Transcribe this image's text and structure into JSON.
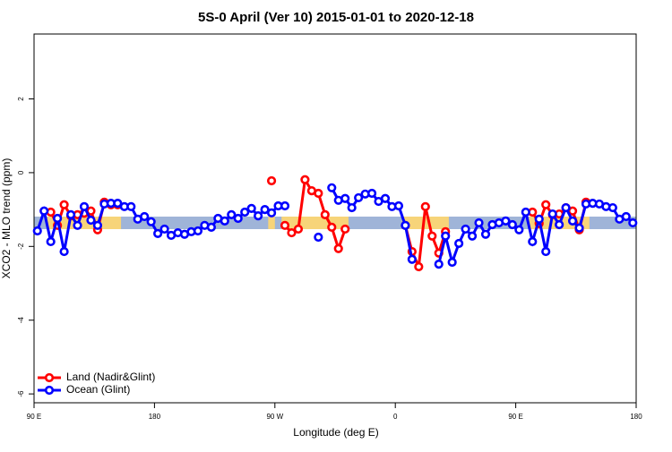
{
  "chart_data": {
    "type": "line",
    "title": "5S-0 April (Ver 10)   2015-01-01 to 2020-12-18",
    "xlabel": "Longitude (deg E)",
    "ylabel": "XCO2 - MLO trend (ppm)",
    "xlim": [
      90,
      540
    ],
    "ylim": [
      -6.24,
      3.76
    ],
    "xticks": [
      {
        "value": 90,
        "label": "90 E"
      },
      180,
      {
        "value": 270,
        "label": "90 W"
      },
      {
        "value": 360,
        "label": "0"
      },
      {
        "value": 450,
        "label": "90 E"
      },
      {
        "value": 540,
        "label": "180"
      }
    ],
    "yticks": [
      -6,
      -4,
      -2,
      0,
      2
    ],
    "legend": "bottom-left",
    "band": {
      "y": -1.36,
      "half_width": 0.17,
      "color": "#9fb4d8",
      "land_color": "#f7d479"
    },
    "x": [
      92.5,
      97.5,
      102.5,
      107.5,
      112.5,
      117.5,
      122.5,
      127.5,
      132.5,
      137.5,
      142.5,
      147.5,
      152.5,
      157.5,
      162.5,
      167.5,
      172.5,
      177.5,
      182.5,
      187.5,
      192.5,
      197.5,
      202.5,
      207.5,
      212.5,
      217.5,
      222.5,
      227.5,
      232.5,
      237.5,
      242.5,
      247.5,
      252.5,
      257.5,
      262.5,
      267.5,
      272.5,
      277.5,
      282.5,
      287.5,
      292.5,
      297.5,
      302.5,
      307.5,
      312.5,
      317.5,
      322.5,
      327.5,
      332.5,
      337.5,
      342.5,
      347.5,
      352.5,
      357.5,
      362.5,
      367.5,
      372.5,
      377.5,
      382.5,
      387.5,
      392.5,
      397.5,
      402.5,
      407.5,
      412.5,
      417.5,
      422.5,
      427.5,
      432.5,
      437.5,
      442.5,
      447.5,
      452.5,
      457.5,
      462.5,
      467.5,
      472.5,
      477.5,
      482.5,
      487.5,
      492.5,
      497.5,
      502.5,
      507.5,
      512.5,
      517.5,
      522.5,
      527.5,
      532.5,
      537.5
    ],
    "series": [
      {
        "name": "Land (Nadir&Glint)",
        "color": "#ff0000",
        "values": [
          null,
          null,
          -1.07,
          -1.43,
          -0.87,
          -1.17,
          -1.14,
          -1.1,
          -1.04,
          -1.55,
          -0.8,
          -0.87,
          -0.87,
          null,
          null,
          null,
          null,
          null,
          null,
          null,
          null,
          null,
          null,
          null,
          null,
          null,
          null,
          null,
          null,
          null,
          null,
          null,
          null,
          null,
          null,
          -0.22,
          null,
          -1.43,
          -1.63,
          -1.53,
          -0.19,
          -0.49,
          -0.56,
          -1.14,
          -1.48,
          -2.06,
          -1.53,
          null,
          null,
          null,
          null,
          null,
          null,
          null,
          null,
          -1.43,
          -2.14,
          -2.55,
          -0.92,
          -1.72,
          -2.18,
          -1.6,
          null,
          null,
          null,
          null,
          null,
          null,
          null,
          null,
          null,
          null,
          null,
          null,
          -1.07,
          -1.38,
          -0.87,
          -1.14,
          -1.12,
          -0.95,
          -1.04,
          -1.55,
          -0.8,
          null,
          null,
          null,
          null,
          null,
          null,
          null
        ]
      },
      {
        "name": "Ocean (Glint)",
        "color": "#0000ff",
        "values": [
          -1.58,
          -1.04,
          -1.87,
          -1.24,
          -2.14,
          -1.14,
          -1.43,
          -0.92,
          -1.29,
          -1.43,
          -0.85,
          -0.83,
          -0.83,
          -0.92,
          -0.92,
          -1.26,
          -1.19,
          -1.33,
          -1.65,
          -1.53,
          -1.7,
          -1.63,
          -1.67,
          -1.6,
          -1.58,
          -1.43,
          -1.48,
          -1.24,
          -1.31,
          -1.14,
          -1.24,
          -1.07,
          -0.97,
          -1.17,
          -1.0,
          -1.09,
          -0.9,
          -0.9,
          null,
          null,
          null,
          null,
          -1.75,
          null,
          -0.41,
          -0.75,
          -0.7,
          -0.95,
          -0.68,
          -0.58,
          -0.56,
          -0.78,
          -0.7,
          -0.92,
          -0.9,
          -1.43,
          -2.35,
          null,
          null,
          null,
          -2.48,
          -1.72,
          -2.43,
          -1.92,
          -1.53,
          -1.72,
          -1.36,
          -1.67,
          -1.41,
          -1.36,
          -1.31,
          -1.41,
          -1.55,
          -1.07,
          -1.87,
          -1.26,
          -2.14,
          -1.12,
          -1.41,
          -0.95,
          -1.31,
          -1.5,
          -0.85,
          -0.83,
          -0.85,
          -0.92,
          -0.95,
          -1.26,
          -1.19,
          -1.36
        ]
      }
    ]
  }
}
